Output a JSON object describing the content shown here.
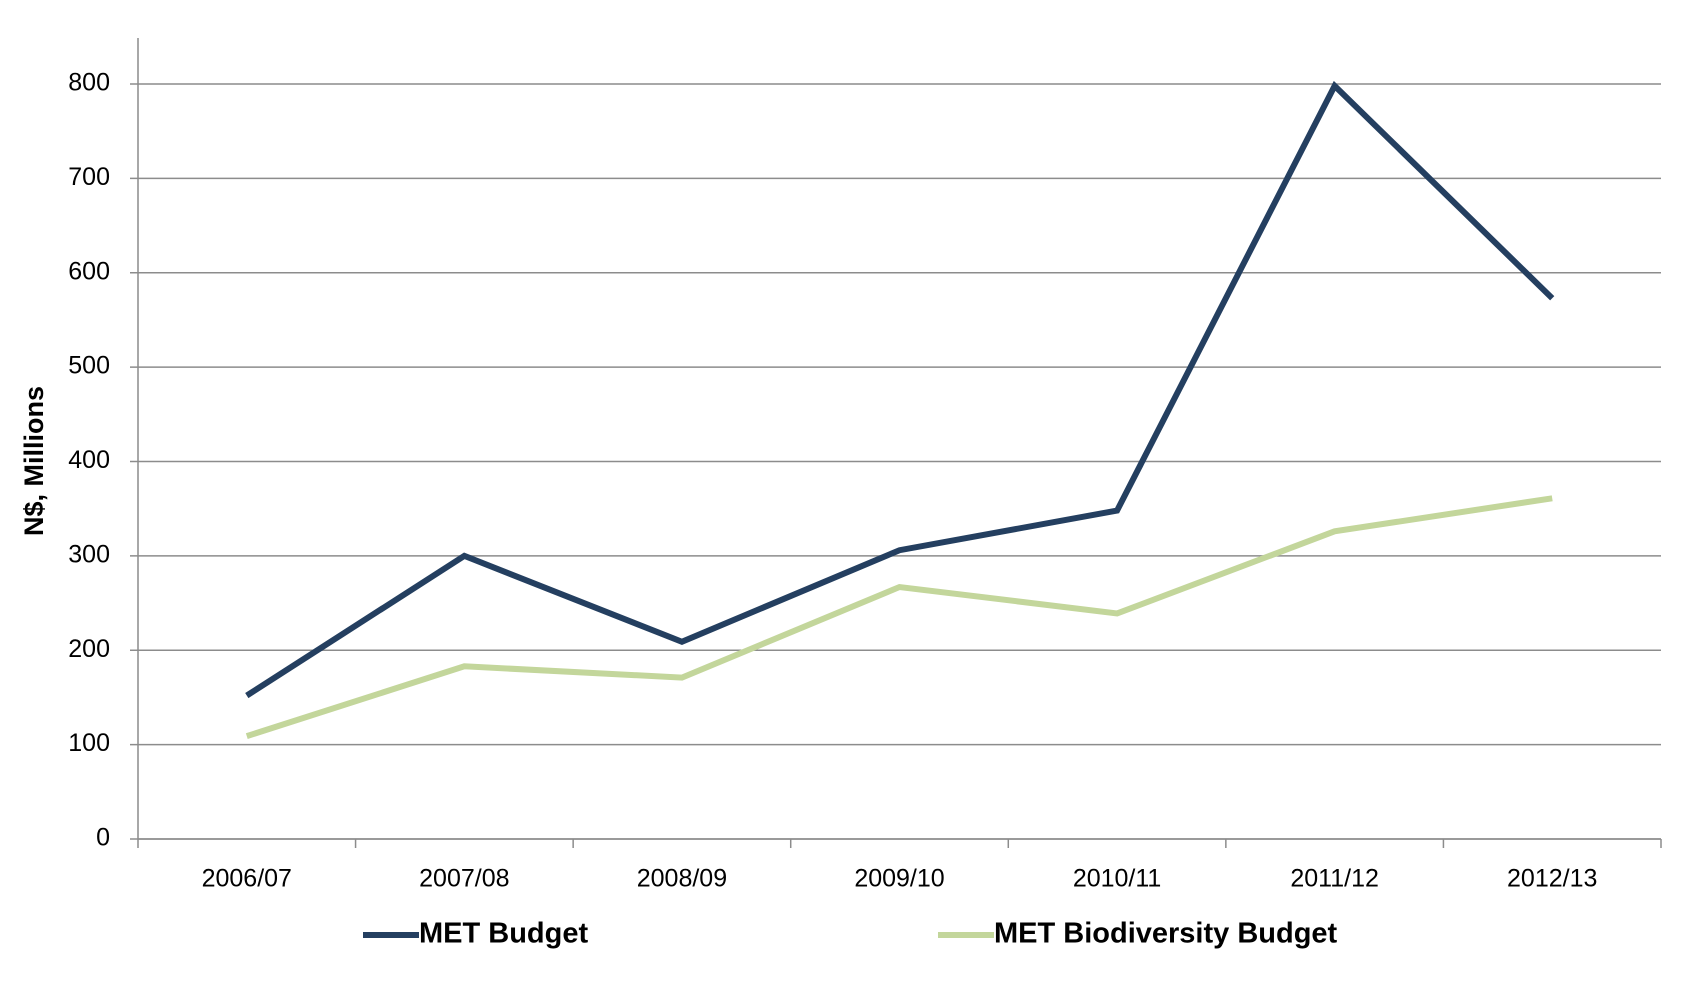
{
  "chart_data": {
    "type": "line",
    "y_label": "N$, Millions",
    "categories": [
      "2006/07",
      "2007/08",
      "2008/09",
      "2009/10",
      "2010/11",
      "2011/12",
      "2012/13"
    ],
    "series": [
      {
        "name": "MET Budget",
        "color": "#243f60",
        "values": [
          152,
          300,
          209,
          306,
          348,
          798,
          573
        ]
      },
      {
        "name": "MET Biodiversity Budget",
        "color": "#c3d69b",
        "values": [
          109,
          183,
          171,
          267,
          239,
          326,
          361
        ]
      }
    ],
    "ylim": [
      0,
      800
    ],
    "yticks": [
      0,
      100,
      200,
      300,
      400,
      500,
      600,
      700,
      800
    ],
    "grid": true,
    "legend": "bottom"
  }
}
